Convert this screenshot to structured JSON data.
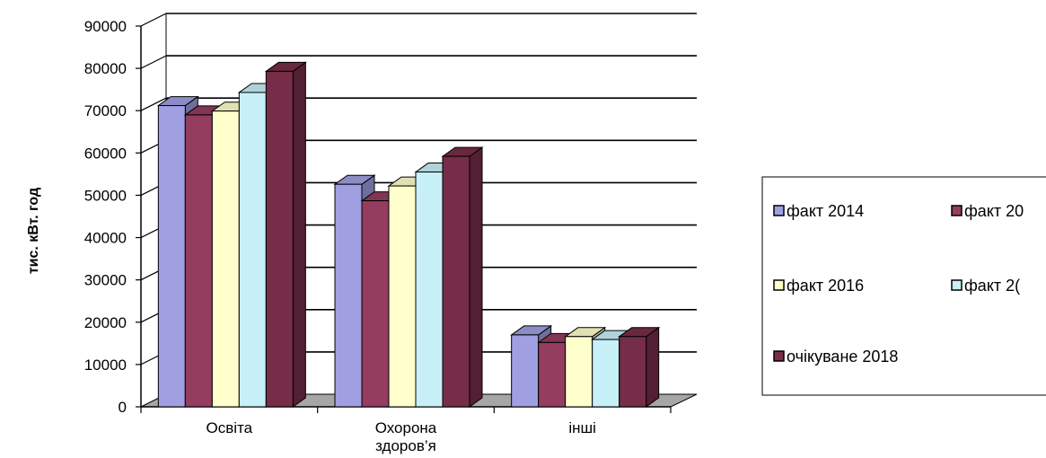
{
  "chart_data": {
    "type": "bar",
    "title": "",
    "xlabel": "",
    "ylabel": "тис. кВт. год",
    "ylim": [
      0,
      90000
    ],
    "yticks": [
      0,
      10000,
      20000,
      30000,
      40000,
      50000,
      60000,
      70000,
      80000,
      90000
    ],
    "grid": true,
    "three_d": true,
    "categories": [
      [
        "Освіта"
      ],
      [
        "Охорона",
        "здоров’я"
      ],
      [
        "інші"
      ]
    ],
    "series": [
      {
        "name": "факт 2014",
        "values": [
          71200,
          52600,
          17000
        ],
        "color": "#9f9fe2"
      },
      {
        "name": "факт 20",
        "values": [
          69000,
          48700,
          15200
        ],
        "color": "#943d5e"
      },
      {
        "name": "факт  2016",
        "values": [
          69900,
          52200,
          16600
        ],
        "color": "#ffffcc"
      },
      {
        "name": "факт  2(",
        "values": [
          74300,
          55500,
          15900
        ],
        "color": "#c7f0f8"
      },
      {
        "name": "очікуване 2018",
        "values": [
          79300,
          59200,
          16600
        ],
        "color": "#762d47"
      }
    ],
    "legend": {
      "placement": "right",
      "rows": [
        [
          0,
          1
        ],
        [
          2,
          3
        ],
        [
          4
        ]
      ]
    }
  }
}
